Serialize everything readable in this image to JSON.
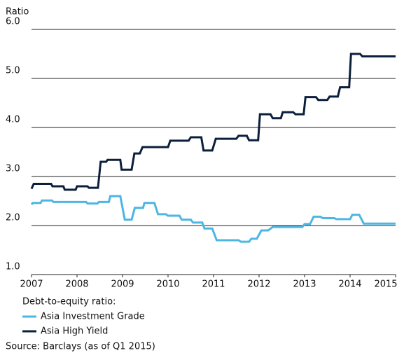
{
  "chart_data": {
    "type": "line",
    "y_label": "Ratio",
    "legend_title": "Debt-to-equity ratio:",
    "source": "Source: Barclays (as of Q1 2015)",
    "xlim": [
      2007,
      2015
    ],
    "xticks": [
      2007,
      2008,
      2009,
      2010,
      2011,
      2012,
      2013,
      2014,
      2015
    ],
    "ylim": [
      1,
      6
    ],
    "yticks": [
      {
        "value": 1,
        "label": "1.0"
      },
      {
        "value": 2,
        "label": "2.0"
      },
      {
        "value": 3,
        "label": "3.0"
      },
      {
        "value": 4,
        "label": "4.0"
      },
      {
        "value": 5,
        "label": "5.0"
      },
      {
        "value": 6,
        "label": "6.0"
      }
    ],
    "grid": true,
    "series": [
      {
        "name": "Asia Investment Grade",
        "color": "#4db6e2",
        "x": [
          2007,
          2007.03,
          2007.2,
          2007.23,
          2007.45,
          2007.48,
          2008.2,
          2008.23,
          2008.45,
          2008.48,
          2008.7,
          2008.73,
          2008.95,
          2009.05,
          2009.2,
          2009.27,
          2009.45,
          2009.48,
          2009.7,
          2009.78,
          2009.95,
          2010,
          2010.25,
          2010.3,
          2010.5,
          2010.55,
          2010.75,
          2010.8,
          2010.97,
          2011.07,
          2011.55,
          2011.6,
          2011.78,
          2011.83,
          2011.95,
          2012.05,
          2012.2,
          2012.3,
          2012.95,
          2013,
          2013.12,
          2013.2,
          2013.35,
          2013.4,
          2013.65,
          2013.7,
          2014,
          2014.05,
          2014.2,
          2014.3,
          2015
        ],
        "values": [
          2.43,
          2.46,
          2.46,
          2.51,
          2.51,
          2.48,
          2.48,
          2.45,
          2.45,
          2.48,
          2.48,
          2.6,
          2.6,
          2.12,
          2.12,
          2.36,
          2.36,
          2.46,
          2.46,
          2.23,
          2.23,
          2.2,
          2.2,
          2.12,
          2.12,
          2.06,
          2.06,
          1.94,
          1.94,
          1.7,
          1.7,
          1.67,
          1.67,
          1.73,
          1.73,
          1.9,
          1.9,
          1.97,
          1.97,
          2.03,
          2.03,
          2.18,
          2.18,
          2.15,
          2.15,
          2.13,
          2.13,
          2.22,
          2.22,
          2.04,
          2.04
        ]
      },
      {
        "name": "Asia High Yield",
        "color": "#0b1f3d",
        "x": [
          2007,
          2007.05,
          2007.43,
          2007.46,
          2007.7,
          2007.73,
          2007.97,
          2008,
          2008.23,
          2008.26,
          2008.46,
          2008.52,
          2008.64,
          2008.67,
          2008.95,
          2008.98,
          2009.2,
          2009.26,
          2009.38,
          2009.44,
          2010,
          2010.05,
          2010.45,
          2010.5,
          2010.73,
          2010.78,
          2010.97,
          2011.05,
          2011.5,
          2011.55,
          2011.73,
          2011.78,
          2011.98,
          2012.02,
          2012.25,
          2012.3,
          2012.48,
          2012.52,
          2012.75,
          2012.8,
          2012.98,
          2013.02,
          2013.25,
          2013.3,
          2013.5,
          2013.55,
          2013.73,
          2013.78,
          2013.98,
          2014.02,
          2014.22,
          2014.27,
          2015
        ],
        "values": [
          2.75,
          2.85,
          2.85,
          2.8,
          2.8,
          2.73,
          2.73,
          2.8,
          2.8,
          2.77,
          2.77,
          3.3,
          3.3,
          3.34,
          3.34,
          3.14,
          3.14,
          3.47,
          3.47,
          3.6,
          3.6,
          3.73,
          3.73,
          3.8,
          3.8,
          3.53,
          3.53,
          3.77,
          3.77,
          3.83,
          3.83,
          3.74,
          3.74,
          4.27,
          4.27,
          4.19,
          4.19,
          4.31,
          4.31,
          4.27,
          4.27,
          4.62,
          4.62,
          4.56,
          4.56,
          4.63,
          4.63,
          4.82,
          4.82,
          5.5,
          5.5,
          5.45,
          5.45
        ]
      }
    ]
  }
}
